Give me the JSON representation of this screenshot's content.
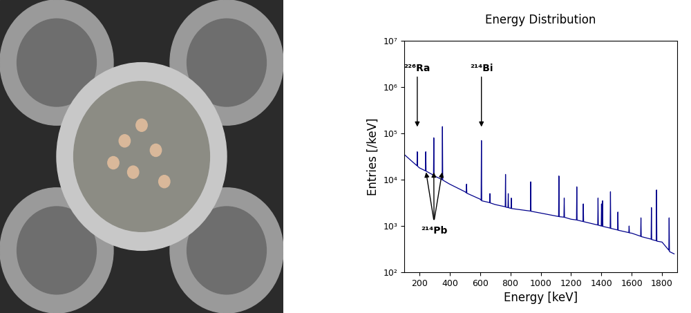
{
  "chart_data": {
    "type": "line",
    "title": "Energy Distribution",
    "x_label": "Energy [keV]",
    "y_label": "Entries [/keV]",
    "x": [
      100,
      150,
      184,
      186,
      188,
      200,
      240,
      242,
      244,
      293,
      295,
      297,
      300,
      350,
      352,
      354,
      400,
      500,
      509,
      511,
      513,
      600,
      607,
      609,
      611,
      663,
      665,
      667,
      700,
      766,
      768,
      770,
      784,
      786,
      788,
      804,
      806,
      808,
      932,
      934,
      936,
      1000,
      1118,
      1120,
      1122,
      1153,
      1155,
      1157,
      1200,
      1236,
      1238,
      1240,
      1279,
      1281,
      1283,
      1376,
      1378,
      1380,
      1399,
      1401,
      1403,
      1406,
      1408,
      1410,
      1458,
      1460,
      1462,
      1507,
      1509,
      1511,
      1581,
      1583,
      1585,
      1600,
      1659,
      1661,
      1663,
      1728,
      1730,
      1732,
      1762,
      1764,
      1766,
      1800,
      1845,
      1847,
      1849,
      1880
    ],
    "series": [
      {
        "name": "Energy Distribution",
        "color": "#00008b",
        "values": [
          35000,
          25000,
          20000,
          40000,
          19500,
          18000,
          15500,
          40000,
          15300,
          12500,
          80000,
          12300,
          12000,
          10000,
          140000,
          9800,
          8000,
          5500,
          5200,
          8000,
          5100,
          3800,
          3600,
          70000,
          3500,
          3200,
          5000,
          3150,
          2900,
          2600,
          13000,
          2550,
          2500,
          5000,
          2480,
          2400,
          4000,
          2380,
          2100,
          9000,
          2080,
          1900,
          1600,
          12000,
          1590,
          1550,
          4000,
          1540,
          1400,
          1350,
          7000,
          1340,
          1250,
          3000,
          1240,
          1050,
          4000,
          1040,
          1000,
          3000,
          1000,
          990,
          3500,
          980,
          900,
          5500,
          890,
          820,
          2000,
          810,
          720,
          1000,
          710,
          700,
          600,
          1500,
          590,
          520,
          2500,
          510,
          480,
          6000,
          470,
          450,
          300,
          1500,
          280,
          250
        ]
      }
    ],
    "xlim": [
      100,
      1900
    ],
    "xticks": [
      200,
      400,
      600,
      800,
      1000,
      1200,
      1400,
      1600,
      1800
    ],
    "ylim": [
      100,
      10000000
    ],
    "yticks": [
      {
        "value": 100,
        "label": "10²"
      },
      {
        "value": 1000,
        "label": "10³"
      },
      {
        "value": 10000,
        "label": "10⁴"
      },
      {
        "value": 100000,
        "label": "10⁵"
      },
      {
        "value": 1000000,
        "label": "10⁶"
      },
      {
        "value": 10000000,
        "label": "10⁷"
      }
    ],
    "log": "y",
    "grid": false,
    "annotations": [
      {
        "text": "²²⁶Ra",
        "x": [
          186
        ]
      },
      {
        "text": "²¹⁴Bi",
        "x": [
          609
        ]
      },
      {
        "text": "²¹⁴Pb",
        "x": [
          242,
          295,
          352
        ]
      }
    ]
  }
}
